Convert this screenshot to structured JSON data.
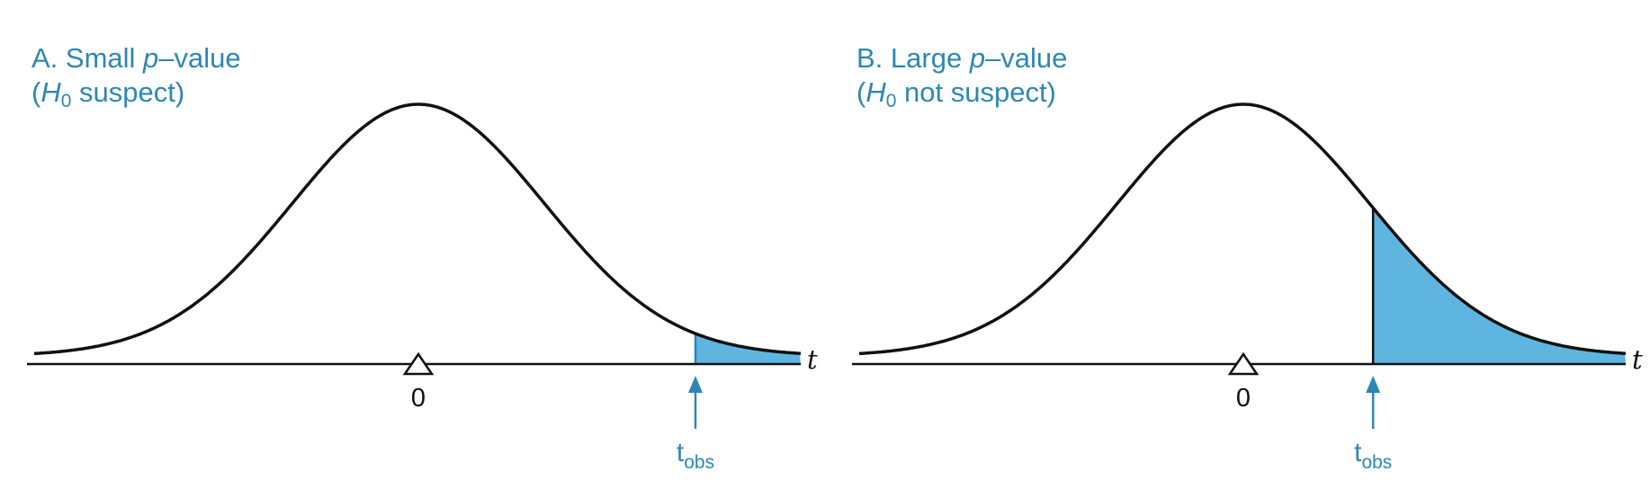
{
  "colors": {
    "accent": "#2d87b3",
    "shade": "#5eb6e0",
    "curve": "#111111"
  },
  "panels": [
    {
      "letter": "A. Small ",
      "p_symbol": "p",
      "title_rest": "–value",
      "paren_open": "(",
      "h_symbol": "H",
      "h_sub": "0",
      "paren_rest": " suspect)",
      "zero_label": "0",
      "axis_var": "t",
      "tobs_main": "t",
      "tobs_sub": "obs",
      "t_obs_z": 2.2,
      "shaded_tail": "right"
    },
    {
      "letter": "B. Large ",
      "p_symbol": "p",
      "title_rest": "–value",
      "paren_open": "(",
      "h_symbol": "H",
      "h_sub": "0",
      "paren_rest": " not suspect)",
      "zero_label": "0",
      "axis_var": "t",
      "tobs_main": "t",
      "tobs_sub": "obs",
      "t_obs_z": 1.03,
      "shaded_tail": "right"
    }
  ]
}
